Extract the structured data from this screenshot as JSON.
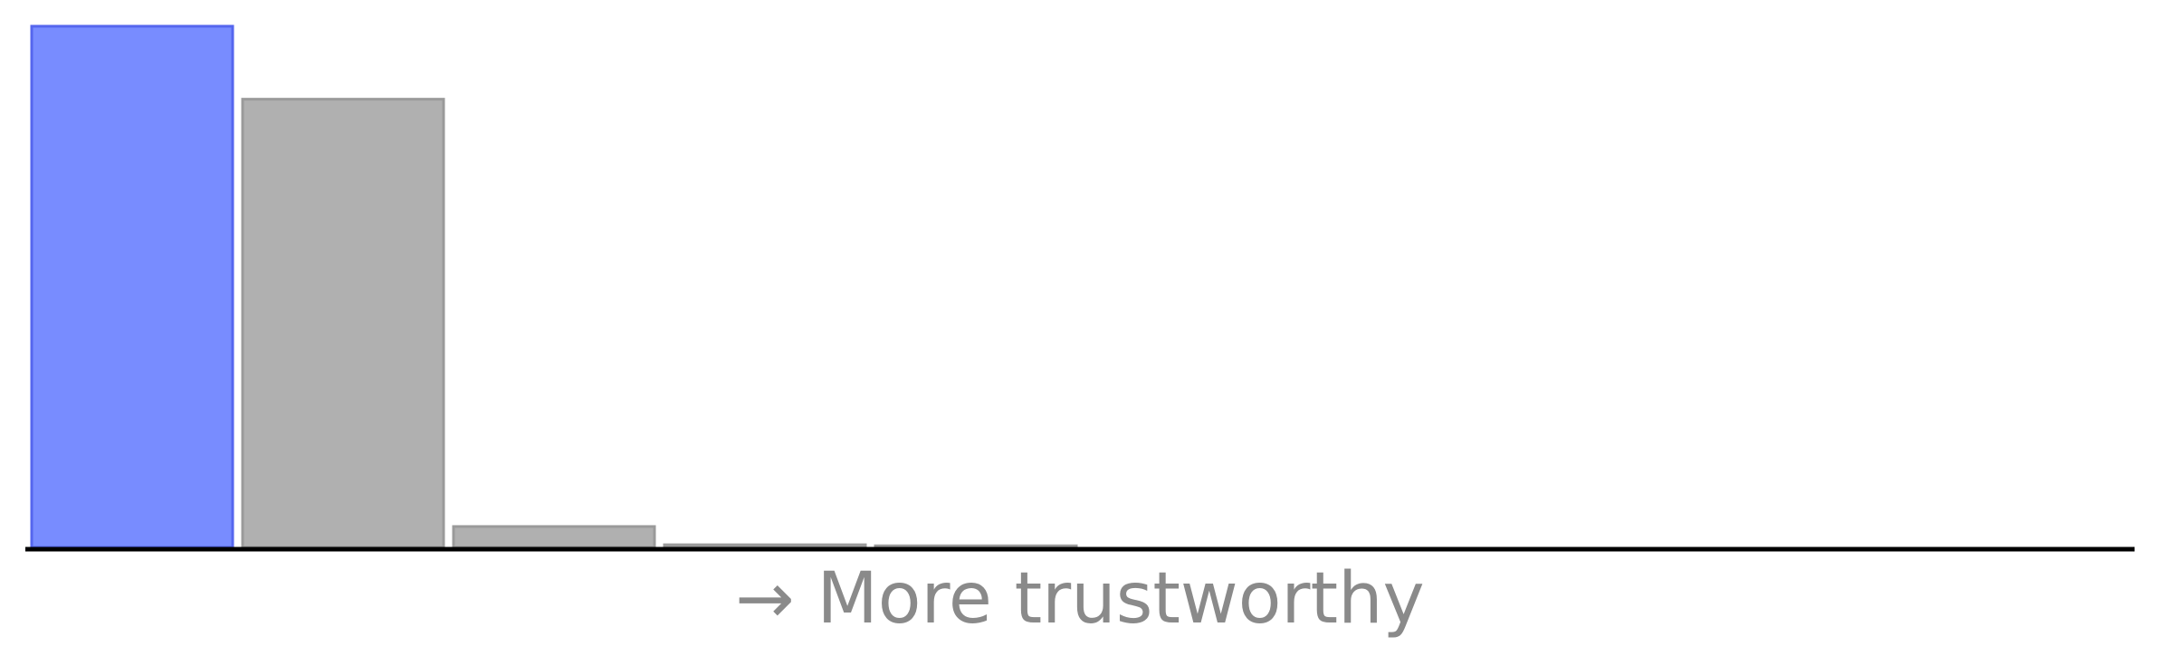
{
  "chart_data": {
    "type": "bar",
    "categories": [
      "",
      "",
      "",
      "",
      "",
      "",
      "",
      "",
      "",
      ""
    ],
    "values": [
      100,
      86,
      4,
      0.5,
      0.3,
      0,
      0,
      0,
      0,
      0
    ],
    "ylim": [
      0,
      100
    ],
    "xlabel": "→ More trustworthy",
    "ylabel": "",
    "title": "",
    "grid": false,
    "legend": "none",
    "highlight_index": 0,
    "colors": {
      "highlight_fill": "#788cff",
      "highlight_edge": "#5566ee",
      "bar_fill": "#b0b0b0",
      "bar_edge": "#9a9a9a",
      "axis": "#000000",
      "label": "#8a8a8a"
    }
  }
}
